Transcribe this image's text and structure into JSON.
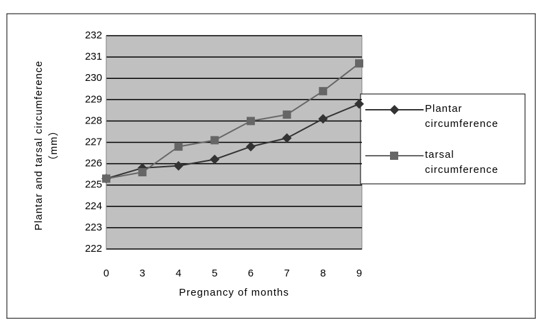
{
  "chart_data": {
    "type": "line",
    "y_label": "Plantar and tarsal circumference（mm）",
    "x_label": "Pregnancy of  months",
    "categories": [
      "0",
      "3",
      "4",
      "5",
      "6",
      "7",
      "8",
      "9"
    ],
    "series": [
      {
        "name": "Plantar circumference",
        "color": "#333333",
        "marker": "diamond",
        "values": [
          225.3,
          225.8,
          225.9,
          226.2,
          226.8,
          227.2,
          228.1,
          228.8
        ]
      },
      {
        "name": "tarsal circumference",
        "color": "#666666",
        "marker": "square",
        "values": [
          225.3,
          225.6,
          226.8,
          227.1,
          228.0,
          228.3,
          229.4,
          230.7
        ]
      }
    ],
    "ylim": [
      222,
      232
    ],
    "yticks": [
      222,
      223,
      224,
      225,
      226,
      227,
      228,
      229,
      230,
      231,
      232
    ],
    "grid": true,
    "plot_background": "#c0c0c0"
  }
}
